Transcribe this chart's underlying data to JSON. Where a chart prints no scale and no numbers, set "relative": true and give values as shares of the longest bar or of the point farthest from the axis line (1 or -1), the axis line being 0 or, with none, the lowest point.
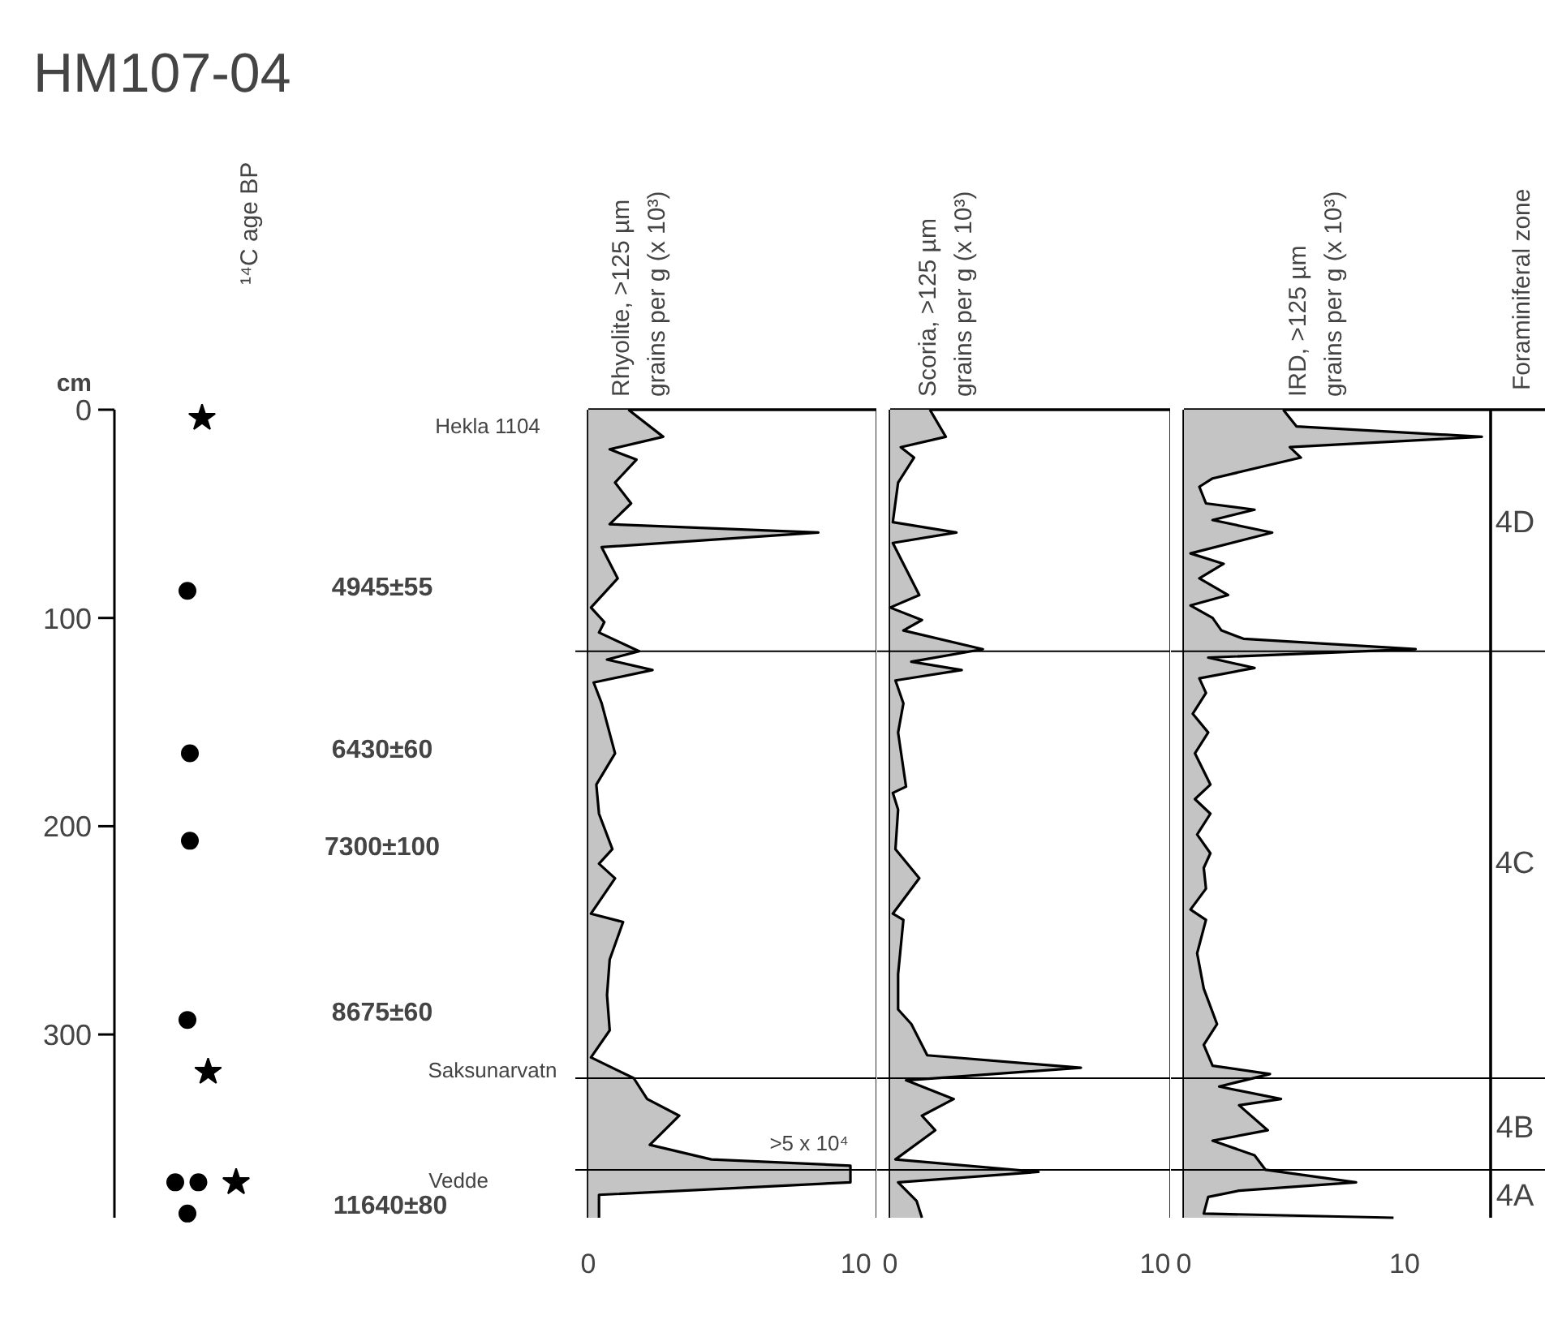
{
  "chart_data": [
    {
      "type": "scatter",
      "title": "HM107-04",
      "ylabel": "cm",
      "orientation": "horizontal",
      "relative": true,
      "ylim": [
        388,
        0
      ],
      "yticks": [
        0,
        100,
        200,
        300
      ],
      "tick_labels": "y",
      "series": [
        {
          "type": "scatter",
          "marker": "circle",
          "color": "#000000",
          "x": [
            87,
            165,
            207,
            293,
            371,
            371,
            386
          ],
          "values": [
            0.6,
            0.62,
            0.62,
            0.6,
            0.5,
            0.69,
            0.6
          ]
        },
        {
          "type": "scatter",
          "marker": "star",
          "color": "#000000",
          "x": [
            4,
            318,
            371
          ],
          "values": [
            0.72,
            0.77,
            1
          ]
        }
      ],
      "annotations": [
        "¹⁴C age BP",
        "Hekla 1104",
        "4945±55",
        "6430±60",
        "7300±100",
        "8675±60",
        "Saksunarvatn",
        "Vedde",
        "11640±80"
      ]
    },
    {
      "type": "area",
      "title": "Rhyolite, >125 µm\ngrains per g (x 10³)",
      "orientation": "horizontal",
      "xlim": [
        0,
        10.8
      ],
      "xticks": [
        0,
        10
      ],
      "ylim": [
        388,
        0
      ],
      "tick_labels": "x",
      "series": [
        {
          "color": "#c4c4c4",
          "x": [
            0,
            13,
            19,
            24,
            35,
            45,
            55,
            59,
            66,
            81,
            95,
            102,
            107,
            116,
            120,
            125,
            131,
            141,
            165,
            180,
            194,
            211,
            218,
            225,
            242,
            246,
            264,
            281,
            298,
            311,
            321,
            331,
            339,
            353,
            360,
            363,
            371,
            377,
            388
          ],
          "values": [
            1.5,
            2.8,
            0.8,
            1.8,
            1.0,
            1.6,
            0.8,
            8.6,
            0.5,
            1.1,
            0.1,
            0.6,
            0.4,
            1.9,
            0.7,
            2.4,
            0.2,
            0.5,
            1.0,
            0.3,
            0.4,
            0.9,
            0.4,
            1.0,
            0.1,
            1.3,
            0.8,
            0.7,
            0.8,
            0.1,
            1.7,
            2.2,
            3.4,
            2.3,
            4.6,
            9.8,
            9.8,
            0.4,
            0.4
          ]
        }
      ],
      "ref_lines": [
        {
          "axis": "y",
          "value": 116
        },
        {
          "axis": "y",
          "value": 321
        },
        {
          "axis": "y",
          "value": 365
        }
      ],
      "annotations": [
        ">5 x 10⁴"
      ]
    },
    {
      "type": "area",
      "title": "Scoria, >125 µm\ngrains per g (x 10³)",
      "orientation": "horizontal",
      "xlim": [
        0,
        10.6
      ],
      "xticks": [
        0,
        10
      ],
      "ylim": [
        388,
        0
      ],
      "tick_labels": "x",
      "series": [
        {
          "color": "#c4c4c4",
          "x": [
            0,
            13,
            18,
            23,
            35,
            54,
            59,
            64,
            74,
            89,
            95,
            101,
            106,
            115,
            121,
            125,
            130,
            141,
            155,
            181,
            184,
            192,
            211,
            225,
            242,
            245,
            271,
            288,
            295,
            310,
            316,
            322,
            331,
            339,
            346,
            360,
            366,
            371,
            380,
            388
          ],
          "values": [
            1.5,
            2.1,
            0.4,
            0.9,
            0.3,
            0.1,
            2.5,
            0.1,
            0.5,
            1.1,
            0,
            1.2,
            0.5,
            3.5,
            0.8,
            2.7,
            0.2,
            0.5,
            0.3,
            0.6,
            0.1,
            0.3,
            0.2,
            1.1,
            0.1,
            0.5,
            0.3,
            0.3,
            0.8,
            1.4,
            7.2,
            0.6,
            2.4,
            1.2,
            1.7,
            0.2,
            5.6,
            0.3,
            1.0,
            1.2
          ]
        }
      ],
      "ref_lines": [
        {
          "axis": "y",
          "value": 116
        },
        {
          "axis": "y",
          "value": 321
        },
        {
          "axis": "y",
          "value": 365
        }
      ]
    },
    {
      "type": "area",
      "title": "IRD, >125 µm\ngrains per g (x 10³)",
      "orientation": "horizontal",
      "xlim": [
        0,
        13.9
      ],
      "xticks": [
        0,
        10
      ],
      "ylim": [
        388,
        0
      ],
      "tick_labels": "x",
      "series": [
        {
          "color": "#c4c4c4",
          "x": [
            0,
            8,
            13,
            18,
            23,
            33,
            37,
            45,
            48,
            53,
            59,
            69,
            74,
            81,
            89,
            94,
            100,
            106,
            110,
            115,
            119,
            124,
            129,
            136,
            146,
            155,
            165,
            180,
            187,
            194,
            204,
            213,
            220,
            230,
            240,
            245,
            261,
            278,
            295,
            305,
            315,
            319,
            325,
            331,
            334,
            346,
            351,
            358,
            365,
            371,
            375,
            378,
            386,
            388
          ],
          "values": [
            4.5,
            5.1,
            13.5,
            4.8,
            5.3,
            1.3,
            0.7,
            1.0,
            3.2,
            1.3,
            4.0,
            0.3,
            1.8,
            0.7,
            2.0,
            0.3,
            1.3,
            1.7,
            2.7,
            10.5,
            1.1,
            3.2,
            0.7,
            1.0,
            0.4,
            1.1,
            0.5,
            1.2,
            0.5,
            1.2,
            0.6,
            1.2,
            0.9,
            1.0,
            0.3,
            1.0,
            0.6,
            0.9,
            1.5,
            0.9,
            1.3,
            3.9,
            1.6,
            4.4,
            2.5,
            3.8,
            1.3,
            3.2,
            3.7,
            7.8,
            2.5,
            1.1,
            0.9,
            9.5
          ]
        }
      ],
      "ref_lines": [
        {
          "axis": "y",
          "value": 116
        },
        {
          "axis": "y",
          "value": 321
        },
        {
          "axis": "y",
          "value": 365
        }
      ],
      "annotations": [
        "Foraminiferal zone",
        "4D",
        "4C",
        "4B",
        "4A"
      ]
    }
  ]
}
